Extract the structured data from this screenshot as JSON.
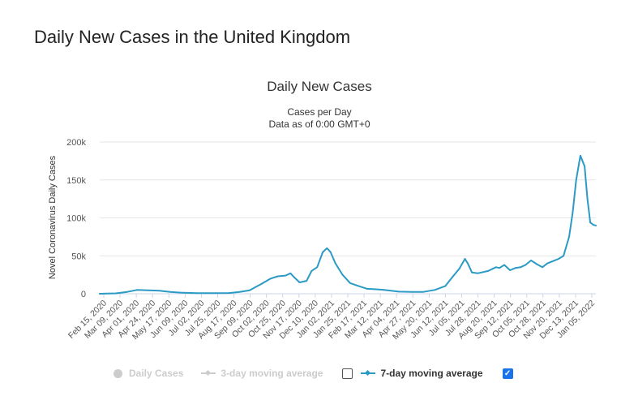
{
  "page": {
    "title": "Daily New Cases in the United Kingdom"
  },
  "chart_data": {
    "type": "line",
    "title": "Daily New Cases",
    "subtitle_lines": [
      "Cases per Day",
      "Data as of 0:00 GMT+0"
    ],
    "ylabel": "Novel Coronavirus Daily Cases",
    "xlabel": "",
    "ylim": [
      0,
      200000
    ],
    "yticks": [
      0,
      50000,
      100000,
      150000,
      200000
    ],
    "ytick_labels": [
      "0",
      "50k",
      "100k",
      "150k",
      "200k"
    ],
    "xlim": [
      "2020-02-15",
      "2022-01-20"
    ],
    "xtick_labels": [
      "Feb 15, 2020",
      "Mar 09, 2020",
      "Apr 01, 2020",
      "Apr 24, 2020",
      "May 17, 2020",
      "Jun 09, 2020",
      "Jul 02, 2020",
      "Jul 25, 2020",
      "Aug 17, 2020",
      "Sep 09, 2020",
      "Oct 02, 2020",
      "Oct 25, 2020",
      "Nov 17, 2020",
      "Dec 10, 2020",
      "Jan 02, 2021",
      "Jan 25, 2021",
      "Feb 17, 2021",
      "Mar 12, 2021",
      "Apr 04, 2021",
      "Apr 27, 2021",
      "May 20, 2021",
      "Jun 12, 2021",
      "Jul 05, 2021",
      "Jul 28, 2021",
      "Aug 20, 2021",
      "Sep 12, 2021",
      "Oct 05, 2021",
      "Oct 28, 2021",
      "Nov 20, 2021",
      "Dec 13, 2021",
      "Jan 05, 2022"
    ],
    "grid": true,
    "legend_position": "bottom",
    "series": [
      {
        "name": "7-day moving average",
        "color": "#2b9ac4",
        "x": [
          "2020-02-15",
          "2020-03-09",
          "2020-03-25",
          "2020-04-08",
          "2020-04-24",
          "2020-05-10",
          "2020-05-25",
          "2020-06-09",
          "2020-07-02",
          "2020-07-25",
          "2020-08-17",
          "2020-09-01",
          "2020-09-15",
          "2020-10-02",
          "2020-10-15",
          "2020-10-25",
          "2020-11-05",
          "2020-11-12",
          "2020-11-17",
          "2020-11-25",
          "2020-12-05",
          "2020-12-12",
          "2020-12-20",
          "2020-12-28",
          "2021-01-03",
          "2021-01-08",
          "2021-01-15",
          "2021-01-25",
          "2021-02-05",
          "2021-02-17",
          "2021-03-01",
          "2021-03-12",
          "2021-03-25",
          "2021-04-15",
          "2021-05-05",
          "2021-05-20",
          "2021-06-05",
          "2021-06-20",
          "2021-07-01",
          "2021-07-10",
          "2021-07-18",
          "2021-07-22",
          "2021-07-28",
          "2021-08-05",
          "2021-08-20",
          "2021-08-31",
          "2021-09-05",
          "2021-09-12",
          "2021-09-20",
          "2021-09-28",
          "2021-10-05",
          "2021-10-12",
          "2021-10-20",
          "2021-10-28",
          "2021-11-05",
          "2021-11-12",
          "2021-11-20",
          "2021-11-28",
          "2021-12-05",
          "2021-12-13",
          "2021-12-18",
          "2021-12-23",
          "2021-12-29",
          "2022-01-01",
          "2022-01-04",
          "2022-01-08",
          "2022-01-12",
          "2022-01-16",
          "2022-01-20"
        ],
        "values": [
          0,
          500,
          2500,
          5000,
          4500,
          4000,
          2500,
          1500,
          700,
          700,
          1000,
          2500,
          4500,
          13000,
          20000,
          23000,
          24000,
          27000,
          22000,
          15000,
          17000,
          30000,
          35000,
          55000,
          60000,
          55000,
          40000,
          25000,
          14000,
          10000,
          6500,
          6000,
          5000,
          2800,
          2300,
          2500,
          5000,
          10000,
          23000,
          33000,
          46000,
          40000,
          28000,
          27000,
          30000,
          35000,
          34000,
          38000,
          31000,
          34000,
          35000,
          38000,
          44000,
          39000,
          35000,
          40000,
          43000,
          46000,
          50000,
          75000,
          107000,
          150000,
          182000,
          175000,
          168000,
          125000,
          94000,
          91000,
          90000
        ]
      }
    ]
  },
  "legend": {
    "items": [
      {
        "label": "Daily Cases",
        "state": "off"
      },
      {
        "label": "3-day moving average",
        "state": "off"
      },
      {
        "label": "7-day moving average",
        "state": "on"
      }
    ]
  }
}
